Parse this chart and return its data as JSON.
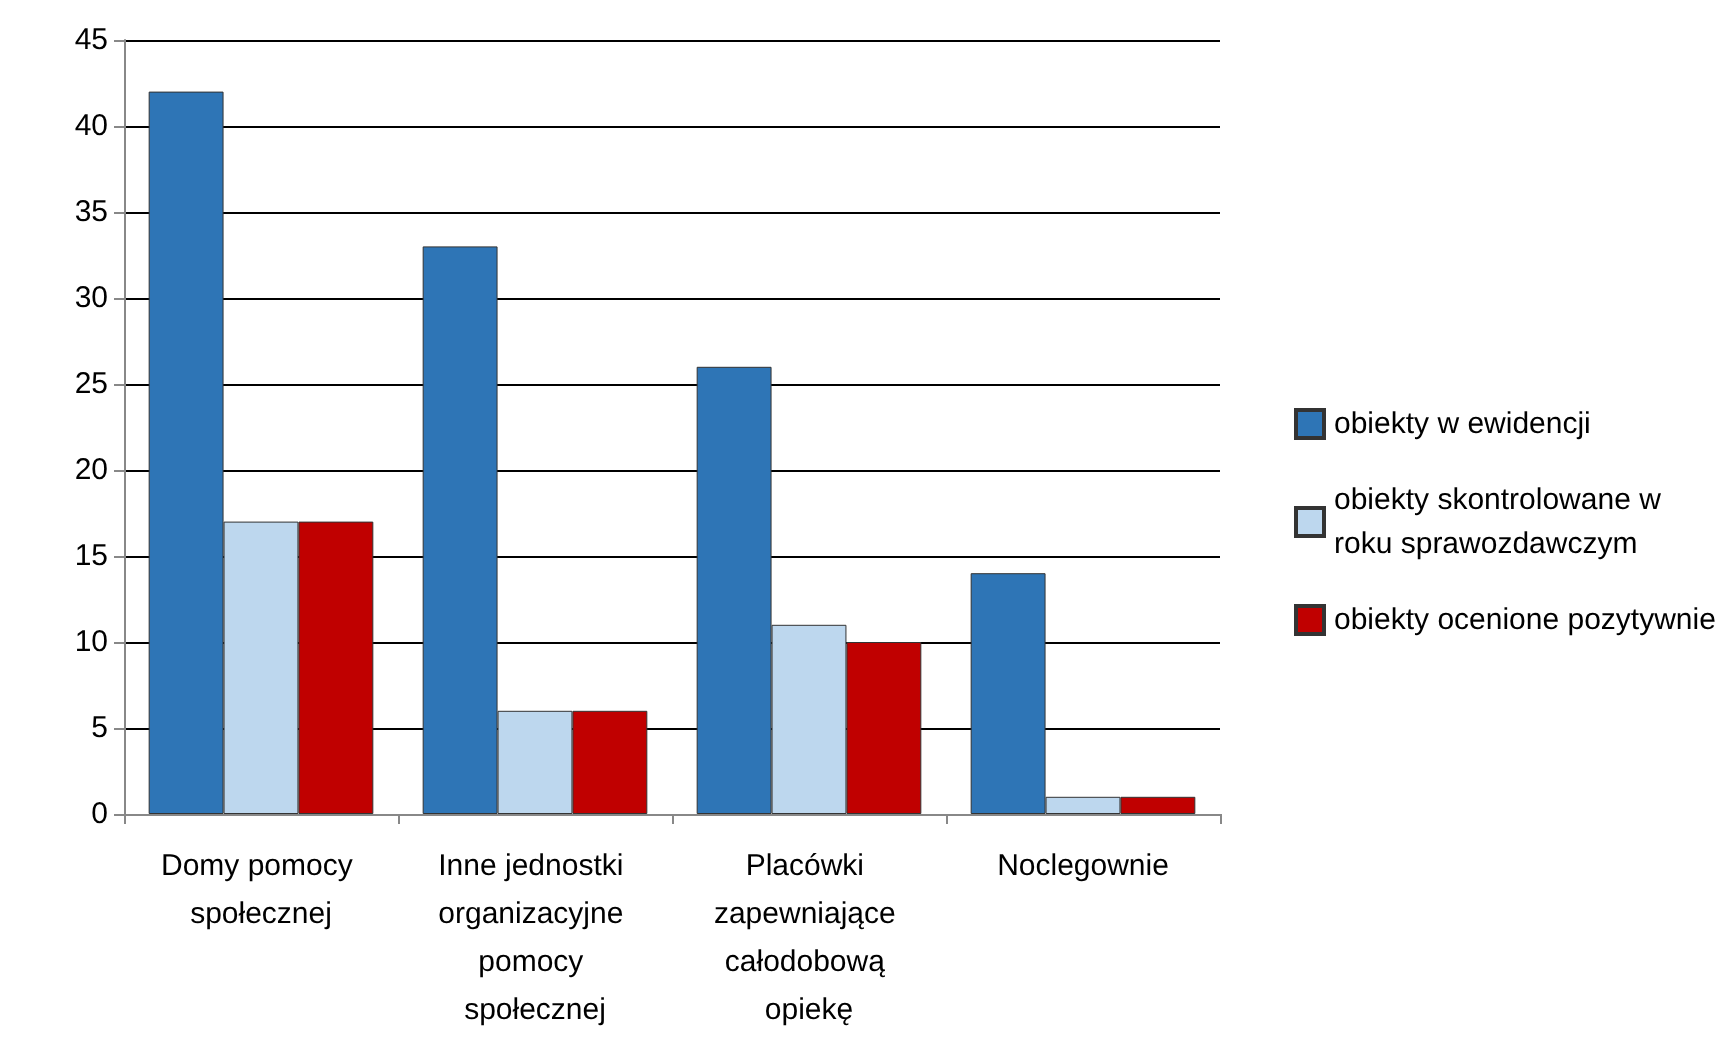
{
  "chart_data": {
    "type": "bar",
    "categories": [
      "Domy pomocy społecznej",
      "Inne jednostki organizacyjne pomocy społecznej",
      "Placówki zapewniające całodobową opiekę",
      "Noclegownie"
    ],
    "series": [
      {
        "name": "obiekty w ewidencji",
        "color": "#2e75b6",
        "values": [
          42,
          33,
          26,
          14
        ]
      },
      {
        "name": "obiekty skontrolowane w roku sprawozdawczym",
        "color": "#bdd7ee",
        "values": [
          17,
          6,
          11,
          1
        ]
      },
      {
        "name": "obiekty ocenione pozytywnie",
        "color": "#c00000",
        "values": [
          17,
          6,
          10,
          1
        ]
      }
    ],
    "ylim": [
      0,
      45
    ],
    "yticks": [
      0,
      5,
      10,
      15,
      20,
      25,
      30,
      35,
      40,
      45
    ],
    "grid": "y",
    "legend": "right"
  }
}
